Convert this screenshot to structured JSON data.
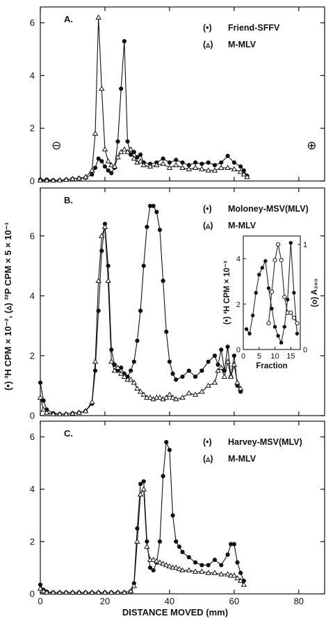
{
  "xlabel": "DISTANCE MOVED (mm)",
  "ylabel_left": "(•) ³H CPM × 10⁻², (▵) ³²P CPM × 5 × 10⁻¹",
  "chart_data": [
    {
      "type": "line",
      "panel": "A.",
      "xlim": [
        0,
        88
      ],
      "ylim": [
        0,
        6.6
      ],
      "yticks": [
        "0",
        "2",
        "4",
        "6"
      ],
      "series": [
        {
          "name": "Friend-SFFV",
          "marker": "filled-circle",
          "legend_marker": "(•)",
          "x": [
            0,
            2,
            4,
            6,
            8,
            10,
            12,
            14,
            16,
            17,
            18,
            19,
            20,
            21,
            22,
            23,
            24,
            25,
            26,
            27,
            28,
            29,
            30,
            31,
            32,
            34,
            36,
            38,
            40,
            42,
            44,
            46,
            48,
            50,
            52,
            54,
            56,
            58,
            60,
            62,
            63,
            64
          ],
          "y": [
            0.05,
            0.05,
            0.03,
            0.03,
            0.05,
            0.08,
            0.1,
            0.12,
            0.25,
            0.5,
            0.85,
            0.75,
            0.55,
            0.4,
            0.3,
            0.5,
            1.5,
            3.5,
            5.3,
            1.5,
            1.0,
            1.1,
            0.9,
            1.0,
            0.7,
            0.65,
            0.7,
            0.85,
            0.7,
            0.8,
            0.7,
            0.6,
            0.7,
            0.65,
            0.7,
            0.6,
            0.7,
            0.95,
            0.7,
            0.55,
            0.4,
            0.2
          ]
        },
        {
          "name": "M-MLV",
          "marker": "open-triangle",
          "legend_marker": "(▵)",
          "x": [
            0,
            2,
            4,
            6,
            8,
            10,
            12,
            14,
            16,
            17,
            18,
            19,
            20,
            21,
            22,
            23,
            24,
            25,
            26,
            27,
            28,
            29,
            30,
            31,
            32,
            34,
            36,
            38,
            40,
            42,
            44,
            46,
            48,
            50,
            52,
            54,
            56,
            58,
            60,
            62,
            63,
            64
          ],
          "y": [
            0.02,
            0.02,
            0.02,
            0.03,
            0.05,
            0.08,
            0.1,
            0.15,
            0.4,
            1.8,
            6.2,
            3.5,
            1.2,
            0.75,
            0.6,
            0.55,
            0.9,
            1.1,
            1.2,
            1.1,
            1.2,
            0.85,
            0.7,
            0.75,
            0.6,
            0.55,
            0.6,
            0.65,
            0.5,
            0.6,
            0.5,
            0.45,
            0.5,
            0.45,
            0.4,
            0.4,
            0.5,
            0.5,
            0.45,
            0.35,
            0.25,
            0.15
          ]
        }
      ],
      "annotations": [
        {
          "text": "⊖",
          "x": 5,
          "y": 1.2
        },
        {
          "text": "⊕",
          "x": 84,
          "y": 1.2
        }
      ]
    },
    {
      "type": "line",
      "panel": "B.",
      "xlim": [
        0,
        88
      ],
      "ylim": [
        0,
        7.6
      ],
      "yticks": [
        "0",
        "2",
        "4",
        "6"
      ],
      "series": [
        {
          "name": "Moloney-MSV(MLV)",
          "marker": "filled-circle",
          "legend_marker": "(•)",
          "x": [
            0,
            1,
            2,
            4,
            6,
            8,
            10,
            12,
            14,
            16,
            17,
            18,
            19,
            20,
            21,
            22,
            23,
            24,
            25,
            26,
            27,
            28,
            29,
            30,
            31,
            32,
            33,
            34,
            35,
            36,
            37,
            38,
            39,
            40,
            41,
            42,
            44,
            46,
            48,
            50,
            52,
            54,
            55,
            56,
            57,
            58,
            59,
            60,
            61,
            62
          ],
          "y": [
            1.1,
            0.5,
            0.2,
            0.08,
            0.05,
            0.05,
            0.08,
            0.1,
            0.15,
            0.4,
            1.5,
            3.5,
            5.5,
            6.4,
            5.0,
            2.2,
            1.7,
            1.5,
            1.6,
            1.4,
            1.3,
            1.5,
            1.8,
            2.5,
            3.5,
            5.0,
            6.3,
            7.0,
            7.0,
            6.8,
            6.2,
            4.5,
            2.8,
            1.8,
            1.4,
            1.2,
            1.3,
            1.5,
            1.3,
            1.5,
            1.8,
            2.0,
            1.7,
            2.2,
            1.5,
            2.3,
            1.3,
            2.0,
            1.0,
            0.8
          ]
        },
        {
          "name": "M-MLV",
          "marker": "open-triangle",
          "legend_marker": "(▵)",
          "x": [
            0,
            1,
            2,
            4,
            6,
            8,
            10,
            12,
            14,
            16,
            17,
            18,
            19,
            20,
            21,
            22,
            23,
            24,
            25,
            26,
            27,
            28,
            29,
            30,
            31,
            32,
            33,
            34,
            35,
            36,
            37,
            38,
            39,
            40,
            41,
            42,
            44,
            46,
            48,
            50,
            52,
            54,
            55,
            56,
            57,
            58,
            59,
            60,
            61,
            62
          ],
          "y": [
            0.6,
            0.2,
            0.1,
            0.05,
            0.05,
            0.05,
            0.07,
            0.1,
            0.15,
            0.45,
            1.8,
            4.5,
            6.0,
            6.3,
            4.5,
            1.8,
            1.5,
            1.6,
            1.4,
            1.3,
            1.2,
            1.2,
            1.1,
            0.9,
            0.8,
            0.7,
            0.6,
            0.6,
            0.55,
            0.6,
            0.6,
            0.55,
            0.6,
            0.7,
            0.6,
            0.55,
            0.6,
            0.75,
            0.7,
            0.8,
            1.0,
            1.1,
            1.5,
            1.6,
            1.3,
            1.8,
            1.3,
            1.7,
            1.1,
            0.9
          ]
        }
      ],
      "inset": {
        "xlabel": "Fraction",
        "ylabel_left": "(•) ³H CPM × 10⁻³",
        "ylabel_right": "(o) A₂₆₀",
        "xlim": [
          0,
          18
        ],
        "ylim_left": [
          0,
          5
        ],
        "ylim_right": [
          0,
          1.08
        ],
        "xticks": [
          "0",
          "5",
          "10",
          "15"
        ],
        "yticks_left": [
          "0",
          "2",
          "4"
        ],
        "yticks_right": [
          "0",
          "1"
        ],
        "series": [
          {
            "name": "³H CPM",
            "marker": "filled-circle",
            "x": [
              1,
              2,
              3,
              4,
              5,
              6,
              7,
              8,
              9,
              10,
              11,
              12,
              13,
              14,
              15,
              16,
              17
            ],
            "y": [
              0.9,
              0.7,
              1.5,
              2.5,
              3.3,
              3.6,
              3.9,
              2.7,
              1.8,
              1.0,
              0.6,
              0.3,
              1.0,
              2.2,
              4.7,
              2.5,
              0.7
            ]
          },
          {
            "name": "A260",
            "marker": "open-circle",
            "x": [
              8,
              9,
              10,
              11,
              12,
              13,
              14,
              15,
              16,
              17
            ],
            "y": [
              0.25,
              0.55,
              0.85,
              1.0,
              0.85,
              0.5,
              0.35,
              0.35,
              0.3,
              0.25
            ]
          }
        ]
      }
    },
    {
      "type": "line",
      "panel": "C.",
      "xlim": [
        0,
        88
      ],
      "ylim": [
        0,
        6.6
      ],
      "yticks": [
        "0",
        "2",
        "4",
        "6"
      ],
      "xticks": [
        "0",
        "20",
        "40",
        "60",
        "80"
      ],
      "series": [
        {
          "name": "Harvey-MSV(MLV)",
          "marker": "filled-circle",
          "legend_marker": "(•)",
          "x": [
            0,
            1,
            2,
            4,
            6,
            8,
            10,
            12,
            14,
            16,
            18,
            20,
            22,
            24,
            26,
            28,
            29,
            30,
            31,
            32,
            33,
            34,
            35,
            36,
            37,
            38,
            39,
            40,
            41,
            42,
            43,
            44,
            46,
            48,
            50,
            52,
            54,
            56,
            58,
            59,
            60,
            61,
            62,
            63
          ],
          "y": [
            0.35,
            0.15,
            0.08,
            0.05,
            0.05,
            0.05,
            0.05,
            0.05,
            0.05,
            0.05,
            0.05,
            0.05,
            0.05,
            0.05,
            0.05,
            0.1,
            0.4,
            2.5,
            4.2,
            4.3,
            2.0,
            1.0,
            0.9,
            1.2,
            2.0,
            4.5,
            5.8,
            5.5,
            3.0,
            2.0,
            1.8,
            1.6,
            1.4,
            1.2,
            1.1,
            1.1,
            1.3,
            1.1,
            1.5,
            1.9,
            1.9,
            1.2,
            0.8,
            0.5
          ]
        },
        {
          "name": "M-MLV",
          "marker": "open-triangle",
          "legend_marker": "(▵)",
          "x": [
            0,
            1,
            2,
            4,
            6,
            8,
            10,
            12,
            14,
            16,
            18,
            20,
            22,
            24,
            26,
            28,
            29,
            30,
            31,
            32,
            33,
            34,
            35,
            36,
            37,
            38,
            39,
            40,
            41,
            42,
            43,
            44,
            46,
            48,
            50,
            52,
            54,
            56,
            58,
            59,
            60,
            61,
            62,
            63
          ],
          "y": [
            0.2,
            0.1,
            0.05,
            0.05,
            0.05,
            0.05,
            0.05,
            0.05,
            0.05,
            0.05,
            0.05,
            0.05,
            0.05,
            0.05,
            0.05,
            0.1,
            0.3,
            2.0,
            3.8,
            4.0,
            1.8,
            1.3,
            1.3,
            1.25,
            1.2,
            1.15,
            1.1,
            1.05,
            1.0,
            1.0,
            0.95,
            0.9,
            0.9,
            0.85,
            0.85,
            0.8,
            0.8,
            0.75,
            0.75,
            0.7,
            0.7,
            0.6,
            0.5,
            0.35
          ]
        }
      ]
    }
  ]
}
